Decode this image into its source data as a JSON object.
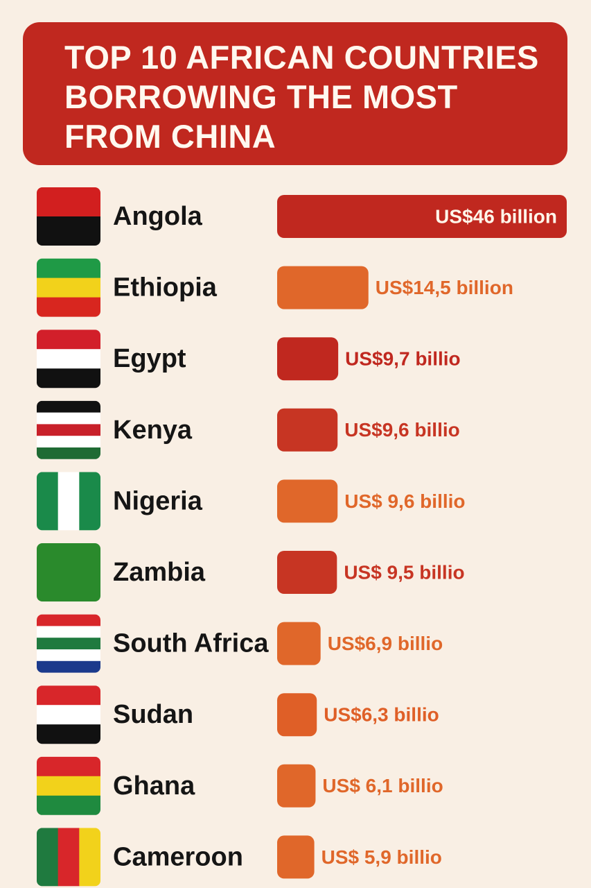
{
  "chart_data": {
    "type": "bar",
    "orientation": "horizontal",
    "title": "TOP 10 AFRICAN COUNTRIES BORROWING THE MOST FROM CHINA",
    "categories": [
      "Angola",
      "Ethiopia",
      "Egypt",
      "Kenya",
      "Nigeria",
      "Zambia",
      "South Africa",
      "Sudan",
      "Ghana",
      "Cameroon"
    ],
    "values": [
      46,
      14.5,
      9.7,
      9.6,
      9.6,
      9.5,
      6.9,
      6.3,
      6.1,
      5.9
    ],
    "value_labels": [
      "US$46 billion",
      "US$14,5 billion",
      "US$9,7 billio",
      "US$9,6 billio",
      "US$ 9,6 billio",
      "US$ 9,5 billio",
      "US$6,9 billio",
      "US$6,3 billio",
      "US$ 6,1 billio",
      "US$ 5,9 billio"
    ],
    "colors": [
      "#c0281f",
      "#e0672a",
      "#c0281f",
      "#c73523",
      "#e0672a",
      "#c73523",
      "#e0672a",
      "#df5f27",
      "#e0672a",
      "#e0672a"
    ]
  }
}
